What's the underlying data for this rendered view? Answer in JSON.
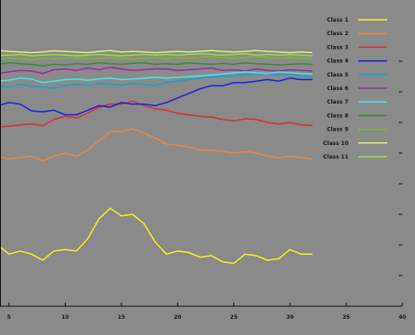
{
  "chart_data": {
    "type": "line",
    "title": "",
    "xlabel": "",
    "ylabel": "",
    "xlim": [
      4.2,
      40
    ],
    "ylim": [
      0,
      1
    ],
    "x_ticks": [
      5,
      10,
      15,
      20,
      25,
      30,
      35,
      40
    ],
    "grid": false,
    "legend_position": "right",
    "background_color": "#8a8a8a",
    "axis_color": "#111111",
    "x": [
      4,
      5,
      6,
      7,
      8,
      9,
      10,
      11,
      12,
      13,
      14,
      15,
      16,
      17,
      18,
      19,
      20,
      21,
      22,
      23,
      24,
      25,
      26,
      27,
      28,
      29,
      30,
      31,
      32
    ],
    "series": [
      {
        "name": "Class 1",
        "color": "#f2f218",
        "values": [
          0.2,
          0.17,
          0.18,
          0.17,
          0.15,
          0.18,
          0.185,
          0.18,
          0.22,
          0.285,
          0.32,
          0.295,
          0.3,
          0.27,
          0.21,
          0.17,
          0.18,
          0.175,
          0.16,
          0.165,
          0.145,
          0.14,
          0.17,
          0.165,
          0.15,
          0.155,
          0.185,
          0.17,
          0.17
        ]
      },
      {
        "name": "Class 2",
        "color": "#e8883a",
        "values": [
          0.49,
          0.48,
          0.485,
          0.49,
          0.475,
          0.49,
          0.5,
          0.49,
          0.51,
          0.54,
          0.57,
          0.57,
          0.58,
          0.565,
          0.55,
          0.53,
          0.525,
          0.52,
          0.51,
          0.51,
          0.505,
          0.5,
          0.505,
          0.5,
          0.49,
          0.485,
          0.49,
          0.485,
          0.48
        ]
      },
      {
        "name": "Class 3",
        "color": "#d83232",
        "values": [
          0.585,
          0.588,
          0.592,
          0.595,
          0.589,
          0.61,
          0.62,
          0.615,
          0.63,
          0.65,
          0.66,
          0.66,
          0.67,
          0.655,
          0.645,
          0.64,
          0.63,
          0.625,
          0.62,
          0.618,
          0.61,
          0.605,
          0.612,
          0.61,
          0.6,
          0.595,
          0.6,
          0.592,
          0.59
        ]
      },
      {
        "name": "Class 4",
        "color": "#1f1fe6",
        "values": [
          0.655,
          0.665,
          0.66,
          0.638,
          0.635,
          0.64,
          0.625,
          0.625,
          0.64,
          0.655,
          0.65,
          0.665,
          0.66,
          0.66,
          0.655,
          0.665,
          0.68,
          0.695,
          0.71,
          0.72,
          0.72,
          0.73,
          0.73,
          0.735,
          0.74,
          0.735,
          0.745,
          0.74,
          0.74
        ]
      },
      {
        "name": "Class 5",
        "color": "#1a9fcc",
        "values": [
          0.72,
          0.715,
          0.725,
          0.718,
          0.715,
          0.712,
          0.72,
          0.725,
          0.72,
          0.728,
          0.725,
          0.722,
          0.728,
          0.725,
          0.72,
          0.73,
          0.735,
          0.74,
          0.745,
          0.748,
          0.75,
          0.752,
          0.755,
          0.758,
          0.76,
          0.755,
          0.758,
          0.752,
          0.748
        ]
      },
      {
        "name": "Class 6",
        "color": "#9a2ba8",
        "values": [
          0.76,
          0.765,
          0.77,
          0.768,
          0.76,
          0.772,
          0.775,
          0.77,
          0.778,
          0.772,
          0.78,
          0.775,
          0.77,
          0.772,
          0.775,
          0.775,
          0.77,
          0.772,
          0.775,
          0.778,
          0.77,
          0.772,
          0.768,
          0.775,
          0.77,
          0.768,
          0.772,
          0.77,
          0.768
        ]
      },
      {
        "name": "Class 7",
        "color": "#3ee8e8",
        "values": [
          0.735,
          0.738,
          0.745,
          0.742,
          0.73,
          0.735,
          0.74,
          0.742,
          0.738,
          0.742,
          0.745,
          0.74,
          0.742,
          0.745,
          0.748,
          0.745,
          0.748,
          0.75,
          0.752,
          0.755,
          0.758,
          0.762,
          0.765,
          0.762,
          0.76,
          0.765,
          0.762,
          0.76,
          0.758
        ]
      },
      {
        "name": "Class 8",
        "color": "#3a8a3a",
        "values": [
          0.79,
          0.795,
          0.792,
          0.79,
          0.785,
          0.79,
          0.788,
          0.792,
          0.79,
          0.795,
          0.792,
          0.79,
          0.793,
          0.795,
          0.79,
          0.792,
          0.79,
          0.795,
          0.792,
          0.79,
          0.793,
          0.79,
          0.795,
          0.792,
          0.79,
          0.788,
          0.79,
          0.792,
          0.79
        ]
      },
      {
        "name": "Class 9",
        "color": "#7ab83a",
        "values": [
          0.805,
          0.81,
          0.808,
          0.806,
          0.81,
          0.808,
          0.81,
          0.812,
          0.81,
          0.808,
          0.812,
          0.81,
          0.808,
          0.81,
          0.812,
          0.81,
          0.812,
          0.81,
          0.813,
          0.815,
          0.812,
          0.81,
          0.812,
          0.815,
          0.812,
          0.81,
          0.812,
          0.81,
          0.808
        ]
      },
      {
        "name": "Class 10",
        "color": "#d8f07a",
        "values": [
          0.835,
          0.832,
          0.83,
          0.828,
          0.83,
          0.834,
          0.832,
          0.83,
          0.828,
          0.832,
          0.835,
          0.83,
          0.832,
          0.83,
          0.828,
          0.83,
          0.832,
          0.83,
          0.832,
          0.835,
          0.832,
          0.83,
          0.832,
          0.835,
          0.832,
          0.83,
          0.828,
          0.83,
          0.828
        ]
      },
      {
        "name": "Class 11",
        "color": "#9cdb4a",
        "values": [
          0.818,
          0.82,
          0.822,
          0.818,
          0.82,
          0.822,
          0.82,
          0.818,
          0.82,
          0.822,
          0.82,
          0.818,
          0.82,
          0.822,
          0.82,
          0.822,
          0.82,
          0.822,
          0.824,
          0.822,
          0.82,
          0.822,
          0.824,
          0.82,
          0.822,
          0.82,
          0.822,
          0.82,
          0.818
        ]
      }
    ]
  }
}
